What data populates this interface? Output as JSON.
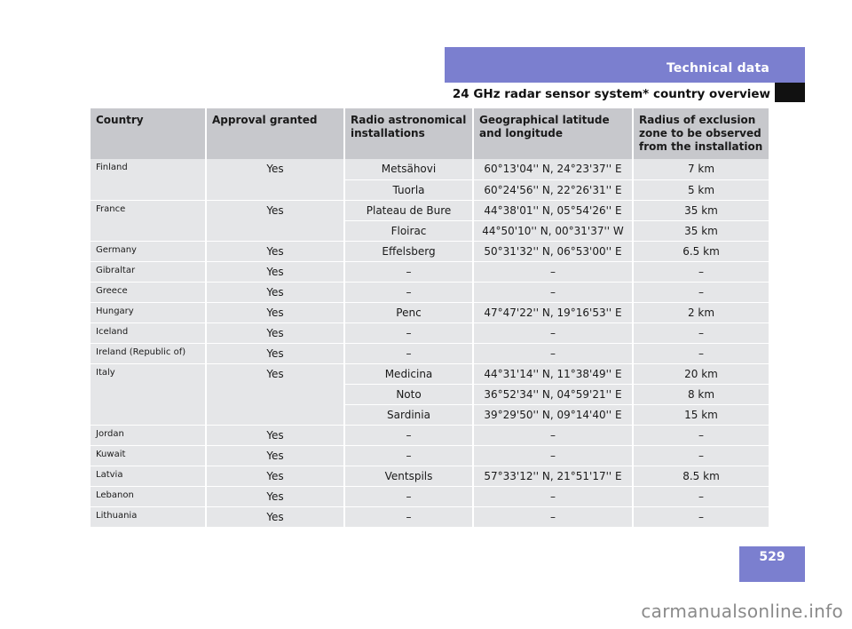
{
  "header": {
    "section_title": "Technical data",
    "subtitle": "24 GHz radar sensor system* country overview"
  },
  "page_number": "529",
  "watermark": "carmanualsonline.info",
  "colors": {
    "accent": "#7b7fcf",
    "header_cell": "#c7c8cc",
    "row_cell": "#e5e6e8"
  },
  "table": {
    "columns": [
      "Country",
      "Approval granted",
      "Radio astronomical installations",
      "Geographical latitude and longitude",
      "Radius of exclusion zone to be observed from the installation"
    ],
    "groups": [
      {
        "country": "Finland",
        "approval": "Yes",
        "rows": [
          {
            "installation": "Metsähovi",
            "coords": "60°13'04'' N, 24°23'37'' E",
            "radius": "7 km"
          },
          {
            "installation": "Tuorla",
            "coords": "60°24'56'' N, 22°26'31'' E",
            "radius": "5 km"
          }
        ]
      },
      {
        "country": "France",
        "approval": "Yes",
        "rows": [
          {
            "installation": "Plateau de Bure",
            "coords": "44°38'01'' N, 05°54'26'' E",
            "radius": "35 km"
          },
          {
            "installation": "Floirac",
            "coords": "44°50'10'' N, 00°31'37'' W",
            "radius": "35 km"
          }
        ]
      },
      {
        "country": "Germany",
        "approval": "Yes",
        "rows": [
          {
            "installation": "Effelsberg",
            "coords": "50°31'32'' N, 06°53'00'' E",
            "radius": "6.5 km"
          }
        ]
      },
      {
        "country": "Gibraltar",
        "approval": "Yes",
        "rows": [
          {
            "installation": "–",
            "coords": "–",
            "radius": "–"
          }
        ]
      },
      {
        "country": "Greece",
        "approval": "Yes",
        "rows": [
          {
            "installation": "–",
            "coords": "–",
            "radius": "–"
          }
        ]
      },
      {
        "country": "Hungary",
        "approval": "Yes",
        "rows": [
          {
            "installation": "Penc",
            "coords": "47°47'22'' N, 19°16'53'' E",
            "radius": "2 km"
          }
        ]
      },
      {
        "country": "Iceland",
        "approval": "Yes",
        "rows": [
          {
            "installation": "–",
            "coords": "–",
            "radius": "–"
          }
        ]
      },
      {
        "country": "Ireland (Republic of)",
        "approval": "Yes",
        "rows": [
          {
            "installation": "–",
            "coords": "–",
            "radius": "–"
          }
        ]
      },
      {
        "country": "Italy",
        "approval": "Yes",
        "rows": [
          {
            "installation": "Medicina",
            "coords": "44°31'14'' N, 11°38'49'' E",
            "radius": "20 km"
          },
          {
            "installation": "Noto",
            "coords": "36°52'34'' N, 04°59'21'' E",
            "radius": "8 km"
          },
          {
            "installation": "Sardinia",
            "coords": "39°29'50'' N, 09°14'40'' E",
            "radius": "15 km"
          }
        ]
      },
      {
        "country": "Jordan",
        "approval": "Yes",
        "rows": [
          {
            "installation": "–",
            "coords": "–",
            "radius": "–"
          }
        ]
      },
      {
        "country": "Kuwait",
        "approval": "Yes",
        "rows": [
          {
            "installation": "–",
            "coords": "–",
            "radius": "–"
          }
        ]
      },
      {
        "country": "Latvia",
        "approval": "Yes",
        "rows": [
          {
            "installation": "Ventspils",
            "coords": "57°33'12'' N, 21°51'17'' E",
            "radius": "8.5 km"
          }
        ]
      },
      {
        "country": "Lebanon",
        "approval": "Yes",
        "rows": [
          {
            "installation": "–",
            "coords": "–",
            "radius": "–"
          }
        ]
      },
      {
        "country": "Lithuania",
        "approval": "Yes",
        "rows": [
          {
            "installation": "–",
            "coords": "–",
            "radius": "–"
          }
        ]
      }
    ]
  }
}
